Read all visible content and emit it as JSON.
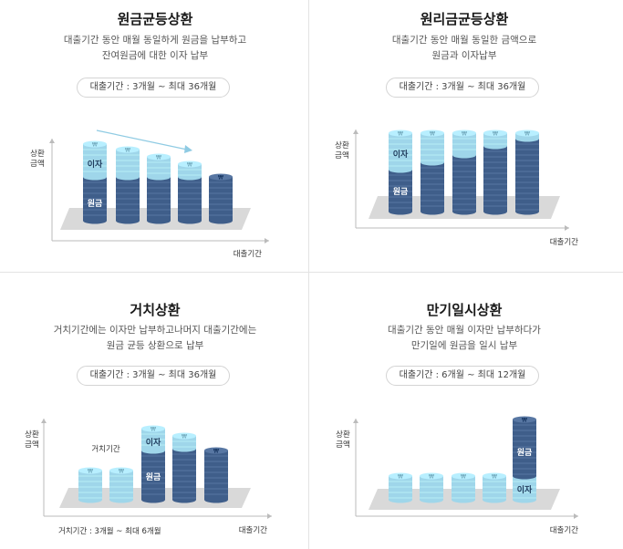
{
  "panels": [
    {
      "title": "원금균등상환",
      "desc_line1": "대출기간 동안 매월 동일하게 원금을 납부하고",
      "desc_line2": "잔여원금에 대한 이자 납부",
      "term": "대출기간 : 3개월 ~ 최대 36개월",
      "y_label_1": "상환",
      "y_label_2": "금액",
      "x_label": "대출기간",
      "interest_label": "이자",
      "principal_label": "원금"
    },
    {
      "title": "원리금균등상환",
      "desc_line1": "대출기간 동안 매월 동일한 금액으로",
      "desc_line2": "원금과 이자납부",
      "term": "대출기간 : 3개월 ~ 최대 36개월",
      "y_label_1": "상환",
      "y_label_2": "금액",
      "x_label": "대출기간",
      "interest_label": "이자",
      "principal_label": "원금"
    },
    {
      "title": "거치상환",
      "desc_line1": "거치기간에는 이자만 납부하고나머지 대출기간에는",
      "desc_line2": "원금 균등 상환으로 납부",
      "term": "대출기간 : 3개월 ~ 최대 36개월",
      "y_label_1": "상환",
      "y_label_2": "금액",
      "x_label": "대출기간",
      "interest_label": "이자",
      "principal_label": "원금",
      "grace_label": "거치기간",
      "grace_note": "거치기간 : 3개월 ~ 최대 6개월"
    },
    {
      "title": "만기일시상환",
      "desc_line1": "대출기간 동안 매월 이자만 납부하다가",
      "desc_line2": "만기일에 원금을 일시 납부",
      "term": "대출기간 : 6개월 ~ 최대 12개월",
      "y_label_1": "상환",
      "y_label_2": "금액",
      "x_label": "대출기간",
      "interest_label": "이자",
      "principal_label": "원금"
    }
  ],
  "colors": {
    "principal": "#3f5e8a",
    "interest": "#9fd6ea",
    "platform": "#d9d9d9",
    "arrow": "#8fcbe3"
  }
}
